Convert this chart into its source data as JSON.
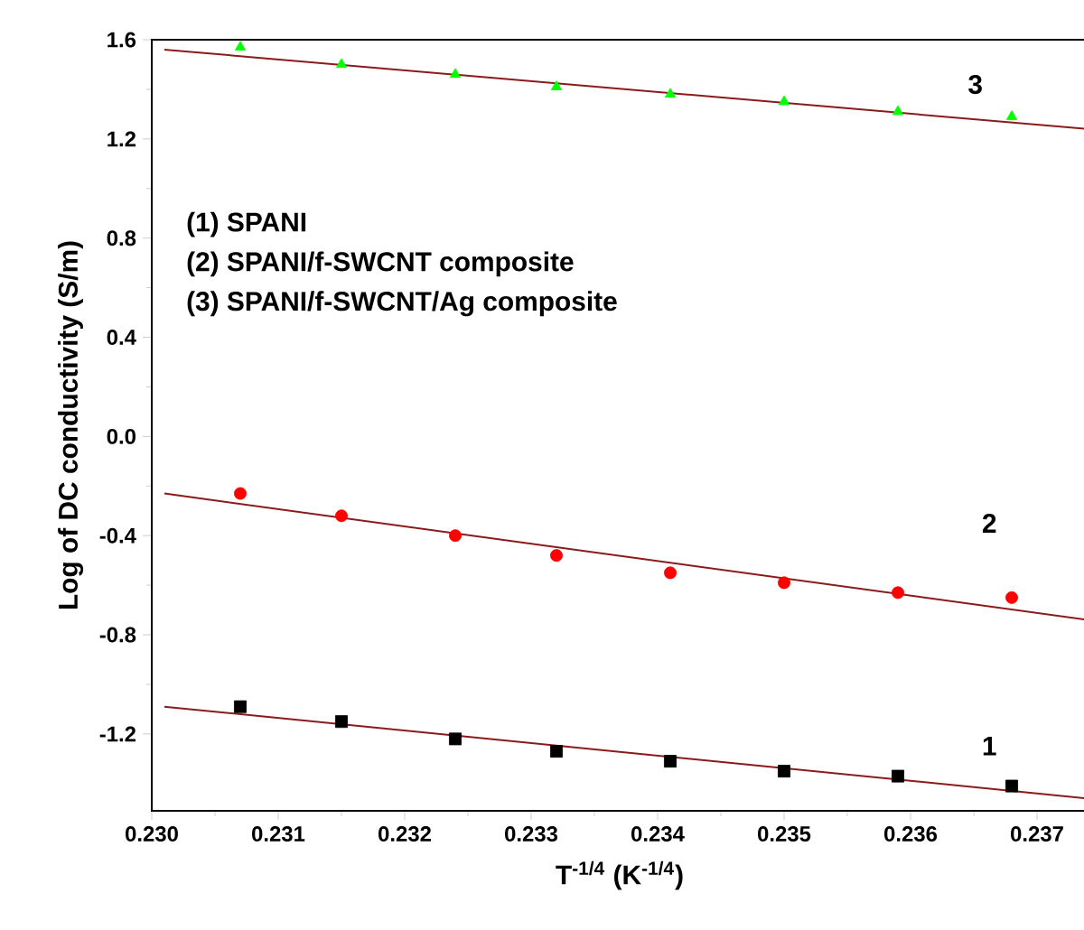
{
  "chart_data": {
    "type": "scatter",
    "xlabel": "T$^{-1/4}$ (K$^{-1/4}$)",
    "ylabel": "Log of DC conductivity (S/m)",
    "xlim": [
      0.23,
      0.2374
    ],
    "ylim": [
      -1.51,
      1.6
    ],
    "xticks": [
      {
        "value": 0.23,
        "label": "0.230"
      },
      0.231,
      0.232,
      0.233,
      0.234,
      0.235,
      0.236,
      0.237
    ],
    "yticks": [
      -1.2,
      -0.8,
      -0.4,
      {
        "value": 0,
        "label": "0.0"
      },
      0.4,
      0.8,
      1.2,
      1.6
    ],
    "grid": false,
    "series": [
      {
        "marker": "square",
        "color": "#000000",
        "x": [
          0.2307,
          0.2315,
          0.2324,
          0.2332,
          0.2341,
          0.235,
          0.2359,
          0.2368
        ],
        "values": [
          -1.09,
          -1.15,
          -1.22,
          -1.27,
          -1.31,
          -1.35,
          -1.37,
          -1.41
        ]
      },
      {
        "marker": "circle",
        "color": "#ff0000",
        "x": [
          0.2307,
          0.2315,
          0.2324,
          0.2332,
          0.2341,
          0.235,
          0.2359,
          0.2368
        ],
        "values": [
          -0.23,
          -0.32,
          -0.4,
          -0.48,
          -0.55,
          -0.59,
          -0.63,
          -0.65
        ]
      },
      {
        "marker": "triangle",
        "color": "#00ff00",
        "x": [
          0.2307,
          0.2315,
          0.2324,
          0.2332,
          0.2341,
          0.235,
          0.2359,
          0.2368
        ],
        "values": [
          1.57,
          1.5,
          1.46,
          1.41,
          1.38,
          1.35,
          1.31,
          1.29
        ]
      },
      {
        "type": "line",
        "marker": "none",
        "color": "#8b1a1a",
        "x": [
          0.2301,
          0.2374
        ],
        "values": [
          -1.09,
          -1.46
        ]
      },
      {
        "type": "line",
        "marker": "none",
        "color": "#8b1a1a",
        "x": [
          0.2301,
          0.2374
        ],
        "values": [
          -0.23,
          -0.74
        ]
      },
      {
        "type": "line",
        "marker": "none",
        "color": "#8b1a1a",
        "x": [
          0.2301,
          0.2374
        ],
        "values": [
          1.56,
          1.24
        ]
      }
    ],
    "annotations": [
      "(1) SPANI",
      "(2) SPANI/f-SWCNT composite",
      "(3) SPANI/f-SWCNT/Ag composite",
      "1",
      "2",
      "3"
    ]
  }
}
